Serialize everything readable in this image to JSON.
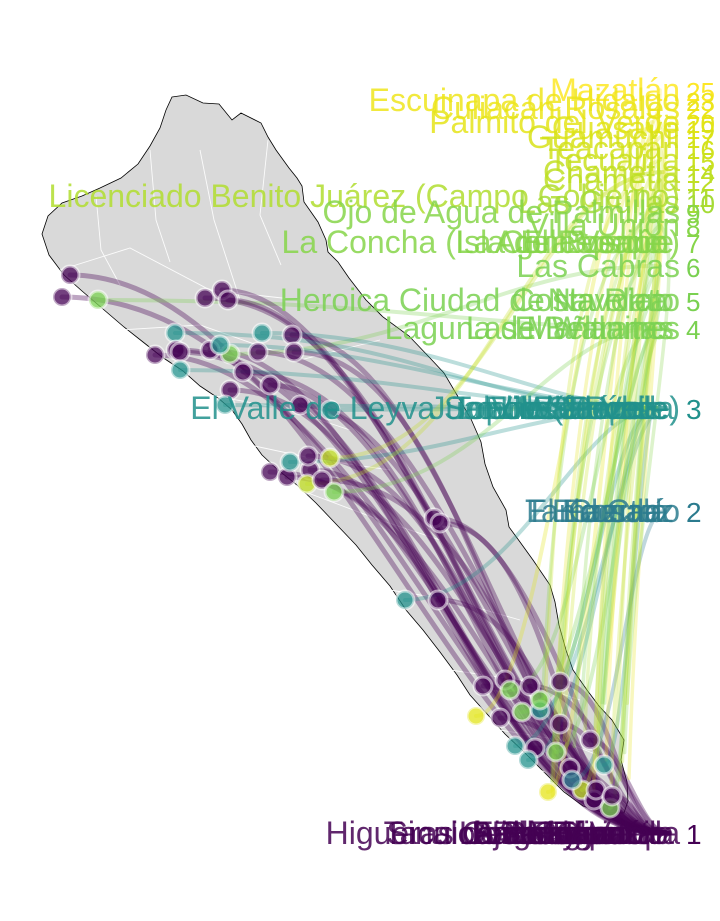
{
  "colors": {
    "map_fill": "#d9d9d9",
    "map_border": "#000000",
    "muni_border": "#ffffff",
    "background": "#ffffff"
  },
  "chart_data": {
    "type": "map-bump",
    "palette": "viridis",
    "rank_colors": {
      "1": "#440154",
      "2": "#2b7b8e",
      "3": "#21918c",
      "4": "#7ad151",
      "5": "#7ad151",
      "6": "#7ad151",
      "7": "#86d549",
      "8": "#86d549",
      "9": "#86d549",
      "10": "#a5db36",
      "11": "#b0dd2f",
      "12": "#bddf26",
      "14": "#c2df23",
      "15": "#cae11f",
      "16": "#d2e21b",
      "17": "#d8e219",
      "18": "#dde318",
      "19": "#e1e418",
      "20": "#e5e419",
      "22": "#ece51b",
      "23": "#efe51c",
      "25": "#fde725"
    },
    "rank_levels": [
      {
        "rank": "25",
        "labels": [
          "Mazatlán"
        ]
      },
      {
        "rank": "23",
        "labels": [
          "Escuinapa de Hidalgo"
        ]
      },
      {
        "rank": "22",
        "labels": [
          "Culiacán Rosales"
        ]
      },
      {
        "rank": "20",
        "labels": [
          "Palmito del Verde"
        ]
      },
      {
        "rank": "19",
        "labels": [
          "Guasave"
        ]
      },
      {
        "rank": "17",
        "labels": [
          "Guamúchil"
        ]
      },
      {
        "rank": "16",
        "labels": [
          "Teacapán"
        ]
      },
      {
        "rank": "15",
        "labels": [
          "Tecualilla"
        ]
      },
      {
        "rank": "14",
        "labels": [
          "Chametla"
        ]
      },
      {
        "rank": "12",
        "labels": [
          "Chametla"
        ]
      },
      {
        "rank": "11",
        "labels": [
          "Licenciado Benito Juárez (Campo Gobierno)"
        ]
      },
      {
        "rank": "10",
        "labels": [
          "Las Grullas"
        ]
      },
      {
        "rank": "9",
        "labels": [
          "Ojo de Agua de Palmillas"
        ]
      },
      {
        "rank": "8",
        "labels": [
          "Villa Unión"
        ]
      },
      {
        "rank": "7",
        "labels": [
          "La Concha (La Concepción)",
          "Isla del Bosque",
          "El Rosario",
          "Agua Verde"
        ]
      },
      {
        "rank": "6",
        "labels": [
          "Las Cabras"
        ]
      },
      {
        "rank": "5",
        "labels": [
          "Heroica Ciudad de Navolato",
          "Navolato",
          "Costa Rica"
        ]
      },
      {
        "rank": "4",
        "labels": [
          "Laguna de Beltranes",
          "Las Mañanitas",
          "El Walamo"
        ]
      },
      {
        "rank": "3",
        "labels": [
          "El Valle de Leyva Solano (El Valle)",
          "Lo de Sauceda",
          "El Pozole",
          "Los Mochis",
          "Villa Juárez",
          "Juan José Ríos",
          "Topolobampo",
          "El Walamo"
        ]
      },
      {
        "rank": "2",
        "labels": [
          "Eldorado",
          "La Cruz",
          "Cosalá",
          "Tamazula",
          "El Fuerte"
        ]
      },
      {
        "rank": "1",
        "labels": [
          "Escuinapa",
          "Tepuxtla",
          "San Ignacio",
          "Ejido El Varal",
          "Cofradía",
          "Mocorito",
          "Badiraguato",
          "Choix",
          "Sinaloa de Leyva",
          "La Reforma",
          "Angostura",
          "Elota",
          "Concordia",
          "Rosario",
          "Higueras de Abuya",
          "Tacuichamona"
        ]
      }
    ]
  }
}
